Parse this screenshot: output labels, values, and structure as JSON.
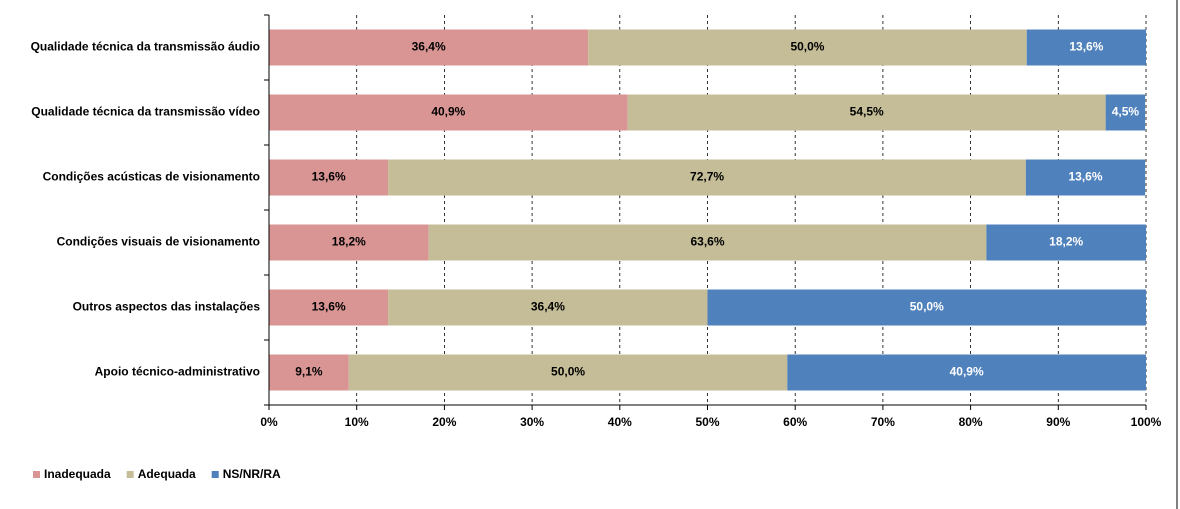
{
  "chart_data": {
    "type": "stacked-bar-horizontal",
    "categories": [
      "Qualidade técnica da transmissão áudio",
      "Qualidade técnica da transmissão vídeo",
      "Condições acústicas de visionamento",
      "Condições visuais de visionamento",
      "Outros aspectos das instalações",
      "Apoio técnico-administrativo"
    ],
    "series": [
      {
        "name": "Inadequada",
        "color": "#d99594",
        "label_color": "#000000",
        "values": [
          36.4,
          40.9,
          13.6,
          18.2,
          13.6,
          9.1
        ],
        "value_labels": [
          "36,4%",
          "40,9%",
          "13,6%",
          "18,2%",
          "13,6%",
          "9,1%"
        ]
      },
      {
        "name": "Adequada",
        "color": "#c4bd97",
        "label_color": "#000000",
        "values": [
          50.0,
          54.5,
          72.7,
          63.6,
          36.4,
          50.0
        ],
        "value_labels": [
          "50,0%",
          "54,5%",
          "72,7%",
          "63,6%",
          "36,4%",
          "50,0%"
        ]
      },
      {
        "name": "NS/NR/RA",
        "color": "#4f81bd",
        "label_color": "#ffffff",
        "values": [
          13.6,
          4.5,
          13.6,
          18.2,
          50.0,
          40.9
        ],
        "value_labels": [
          "13,6%",
          "4,5%",
          "13,6%",
          "18,2%",
          "50,0%",
          "40,9%"
        ]
      }
    ],
    "xlim": [
      0,
      100
    ],
    "xticks": [
      {
        "value": 0,
        "label": "0%"
      },
      {
        "value": 10,
        "label": "10%"
      },
      {
        "value": 20,
        "label": "20%"
      },
      {
        "value": 30,
        "label": "30%"
      },
      {
        "value": 40,
        "label": "40%"
      },
      {
        "value": 50,
        "label": "50%"
      },
      {
        "value": 60,
        "label": "60%"
      },
      {
        "value": 70,
        "label": "70%"
      },
      {
        "value": 80,
        "label": "80%"
      },
      {
        "value": 90,
        "label": "90%"
      },
      {
        "value": 100,
        "label": "100%"
      }
    ],
    "grid": true,
    "legend": "bottom-left"
  }
}
